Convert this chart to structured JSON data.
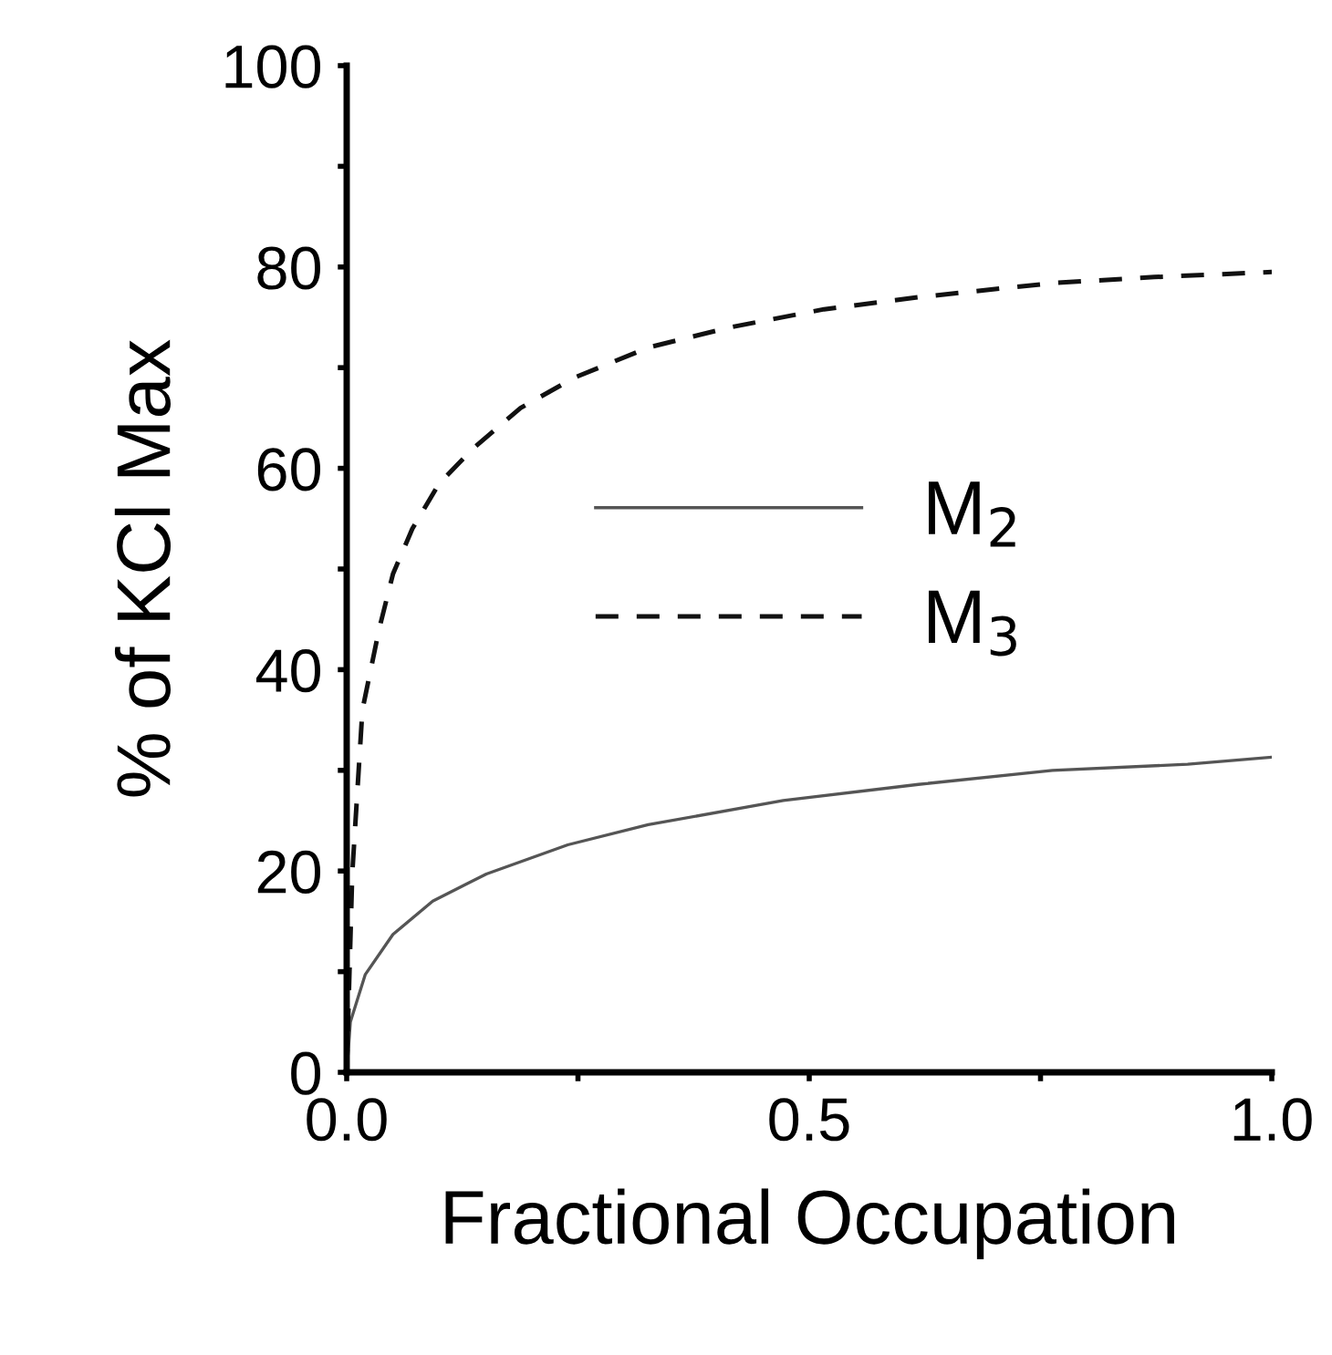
{
  "chart_data": {
    "type": "line",
    "xlabel": "Fractional Occupation",
    "ylabel": "% of KCl Max",
    "xlim": [
      0,
      1.0
    ],
    "ylim": [
      0,
      100
    ],
    "xticks": [
      {
        "value": 0,
        "label": "0.0"
      },
      {
        "value": 0.25,
        "label": null
      },
      {
        "value": 0.5,
        "label": "0.5"
      },
      {
        "value": 0.75,
        "label": null
      },
      {
        "value": 1.0,
        "label": "1.0"
      }
    ],
    "yticks": [
      0,
      {
        "value": 10,
        "label": null
      },
      20,
      {
        "value": 30,
        "label": null
      },
      40,
      {
        "value": 50,
        "label": null
      },
      60,
      {
        "value": 70,
        "label": null
      },
      80,
      {
        "value": 90,
        "label": null
      },
      100
    ],
    "grid": false,
    "legend": "center",
    "marker": "none",
    "series": [
      {
        "name": "M$_{2}$",
        "color": "#555555",
        "line_style": "solid",
        "x": [
          0,
          0.004,
          0.02,
          0.05,
          0.093,
          0.151,
          0.239,
          0.326,
          0.472,
          0.618,
          0.763,
          0.909,
          1.0
        ],
        "values": [
          0,
          5,
          9.7,
          13.7,
          17,
          19.7,
          22.6,
          24.6,
          27,
          28.6,
          30,
          30.6,
          31.3
        ]
      },
      {
        "name": "M$_{3}$",
        "color": "#111111",
        "line_style": "dashed",
        "x": [
          0,
          0.006,
          0.017,
          0.035,
          0.05,
          0.071,
          0.1,
          0.137,
          0.188,
          0.246,
          0.326,
          0.414,
          0.516,
          0.618,
          0.763,
          0.873,
          1.0
        ],
        "values": [
          0,
          19.7,
          36,
          44,
          49.5,
          54,
          58.5,
          62,
          66,
          69,
          72,
          74,
          75.8,
          77,
          78.4,
          79,
          79.5
        ]
      }
    ]
  }
}
